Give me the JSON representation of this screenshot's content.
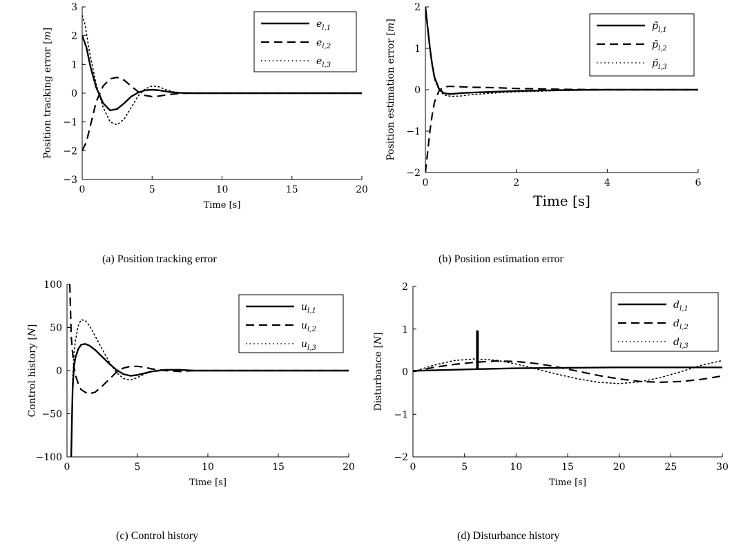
{
  "chart_data": [
    {
      "type": "line",
      "title": "",
      "caption": "(a)  Position tracking error",
      "xlabel": "Time [s]",
      "ylabel": "Position tracking error [m]",
      "xlim": [
        0,
        20
      ],
      "ylim": [
        -3,
        3
      ],
      "xticks": [
        0,
        5,
        10,
        15,
        20
      ],
      "yticks": [
        -3,
        -2,
        -1,
        0,
        1,
        2,
        3
      ],
      "grid": false,
      "legend_position": "top-right",
      "series": [
        {
          "name": "e_{l,1}",
          "style": "solid",
          "x": [
            0,
            0.3,
            0.6,
            1.0,
            1.5,
            2.0,
            2.5,
            3.0,
            3.5,
            4.0,
            4.5,
            5.0,
            5.5,
            6.0,
            6.5,
            7.0,
            8.0,
            9.0,
            10,
            20
          ],
          "y": [
            2.0,
            1.6,
            0.9,
            0.2,
            -0.35,
            -0.6,
            -0.55,
            -0.35,
            -0.12,
            0.02,
            0.1,
            0.12,
            0.1,
            0.06,
            0.03,
            0.01,
            0.0,
            0.0,
            0.0,
            0.0
          ]
        },
        {
          "name": "e_{l,2}",
          "style": "dashed",
          "x": [
            0,
            0.3,
            0.6,
            1.0,
            1.5,
            2.0,
            2.5,
            3.0,
            3.5,
            4.0,
            4.5,
            5.0,
            5.5,
            6.0,
            6.5,
            7.0,
            8.0,
            9.0,
            10,
            20
          ],
          "y": [
            -2.0,
            -1.7,
            -1.1,
            -0.3,
            0.25,
            0.5,
            0.55,
            0.45,
            0.25,
            0.05,
            -0.08,
            -0.12,
            -0.1,
            -0.06,
            -0.03,
            -0.01,
            0.0,
            0.0,
            0.0,
            0.0
          ]
        },
        {
          "name": "e_{l,3}",
          "style": "dotted",
          "x": [
            0,
            0.2,
            0.5,
            1.0,
            1.5,
            2.0,
            2.5,
            3.0,
            3.5,
            4.0,
            4.5,
            5.0,
            5.5,
            6.0,
            6.5,
            7.0,
            8.0,
            9.0,
            10,
            20
          ],
          "y": [
            2.7,
            2.4,
            1.5,
            0.3,
            -0.5,
            -1.0,
            -1.1,
            -0.9,
            -0.5,
            -0.1,
            0.15,
            0.25,
            0.22,
            0.12,
            0.05,
            0.02,
            0.0,
            0.0,
            0.0,
            0.0
          ]
        }
      ]
    },
    {
      "type": "line",
      "title": "",
      "caption": "(b)  Position estimation error",
      "xlabel": "Time [s]",
      "ylabel": "Position estimation error [m]",
      "xlim": [
        0,
        6
      ],
      "ylim": [
        -2,
        2
      ],
      "xticks": [
        0,
        2,
        4,
        6
      ],
      "yticks": [
        -2,
        -1,
        0,
        1,
        2
      ],
      "grid": false,
      "legend_position": "top-right",
      "series": [
        {
          "name": "p̃_{l,1}",
          "style": "solid",
          "x": [
            0,
            0.05,
            0.1,
            0.15,
            0.2,
            0.3,
            0.4,
            0.5,
            0.6,
            0.8,
            1.0,
            1.5,
            2.0,
            3.0,
            4.0,
            5.0,
            6.0
          ],
          "y": [
            2.0,
            1.5,
            1.0,
            0.6,
            0.3,
            0.02,
            -0.08,
            -0.1,
            -0.1,
            -0.08,
            -0.07,
            -0.05,
            -0.03,
            -0.01,
            0.0,
            0.0,
            0.0
          ]
        },
        {
          "name": "p̃_{l,2}",
          "style": "dashed",
          "x": [
            0,
            0.05,
            0.1,
            0.15,
            0.2,
            0.3,
            0.4,
            0.5,
            0.6,
            0.8,
            1.0,
            1.5,
            2.0,
            3.0,
            4.0,
            5.0,
            6.0
          ],
          "y": [
            -2.0,
            -1.5,
            -1.0,
            -0.6,
            -0.3,
            -0.02,
            0.06,
            0.08,
            0.08,
            0.07,
            0.06,
            0.05,
            0.03,
            0.01,
            0.0,
            0.0,
            0.0
          ]
        },
        {
          "name": "p̃_{l,3}",
          "style": "dotted",
          "x": [
            0,
            0.05,
            0.1,
            0.15,
            0.2,
            0.3,
            0.4,
            0.5,
            0.6,
            0.8,
            1.0,
            1.5,
            2.0,
            3.0,
            4.0,
            5.0,
            6.0
          ],
          "y": [
            2.0,
            1.5,
            1.0,
            0.6,
            0.25,
            0.0,
            -0.12,
            -0.15,
            -0.16,
            -0.15,
            -0.12,
            -0.08,
            -0.05,
            -0.02,
            0.0,
            0.0,
            0.0
          ]
        }
      ]
    },
    {
      "type": "line",
      "title": "",
      "caption": "(c)  Control history",
      "xlabel": "Time [s]",
      "ylabel": "Control history [N]",
      "xlim": [
        0,
        20
      ],
      "ylim": [
        -100,
        100
      ],
      "xticks": [
        0,
        5,
        10,
        15,
        20
      ],
      "yticks": [
        -100,
        -50,
        0,
        50,
        100
      ],
      "grid": false,
      "legend_position": "top-right",
      "series": [
        {
          "name": "u_{l,1}",
          "style": "solid",
          "x": [
            0.3,
            0.35,
            0.4,
            0.5,
            0.6,
            0.8,
            1.0,
            1.3,
            1.6,
            2.0,
            2.5,
            3.0,
            3.5,
            4.0,
            4.5,
            5.0,
            5.5,
            6.0,
            6.5,
            7.0,
            8.0,
            9.0,
            10,
            20
          ],
          "y": [
            -100,
            -60,
            -20,
            5,
            15,
            25,
            30,
            31,
            29,
            24,
            16,
            8,
            1,
            -4,
            -6,
            -5,
            -3,
            -1,
            0,
            1,
            1,
            0,
            0,
            0
          ]
        },
        {
          "name": "u_{l,2}",
          "style": "dashed",
          "x": [
            0.2,
            0.25,
            0.3,
            0.4,
            0.5,
            0.6,
            0.8,
            1.0,
            1.5,
            2.0,
            2.5,
            3.0,
            3.5,
            4.0,
            4.5,
            5.0,
            5.5,
            6.0,
            7.0,
            8.0,
            9.0,
            10,
            20
          ],
          "y": [
            100,
            70,
            40,
            20,
            5,
            -5,
            -15,
            -22,
            -27,
            -25,
            -18,
            -10,
            -2,
            3,
            5,
            5,
            4,
            2,
            0,
            -1,
            0,
            0,
            0
          ]
        },
        {
          "name": "u_{l,3}",
          "style": "dotted",
          "x": [
            0.3,
            0.35,
            0.4,
            0.5,
            0.6,
            0.8,
            1.0,
            1.3,
            1.6,
            2.0,
            2.5,
            3.0,
            3.5,
            4.0,
            4.5,
            5.0,
            5.5,
            6.0,
            7.0,
            8.0,
            9.0,
            10,
            20
          ],
          "y": [
            -100,
            -60,
            -10,
            20,
            35,
            52,
            59,
            58,
            52,
            40,
            25,
            10,
            -2,
            -9,
            -11,
            -8,
            -4,
            -1,
            1,
            1,
            0,
            0,
            0
          ]
        }
      ]
    },
    {
      "type": "line",
      "title": "",
      "caption": "(d)  Disturbance history",
      "xlabel": "Time [s]",
      "ylabel": "Disturbance [N]",
      "xlim": [
        0,
        30
      ],
      "ylim": [
        -2,
        2
      ],
      "xticks": [
        0,
        5,
        10,
        15,
        20,
        25,
        30
      ],
      "yticks": [
        -2,
        -1,
        0,
        1,
        2
      ],
      "grid": false,
      "legend_position": "top-right",
      "series": [
        {
          "name": "d_{l,1}",
          "style": "solid",
          "x": [
            0,
            6.2,
            6.2,
            6.3,
            6.3,
            10,
            15,
            20,
            25,
            30
          ],
          "y": [
            0.02,
            0.06,
            0.95,
            0.95,
            0.06,
            0.08,
            0.09,
            0.1,
            0.1,
            0.1
          ]
        },
        {
          "name": "d_{l,2}",
          "style": "dashed",
          "x": [
            0,
            2,
            4,
            6,
            8,
            10,
            12,
            14,
            16,
            18,
            20,
            22,
            24,
            26,
            28,
            30
          ],
          "y": [
            0.0,
            0.1,
            0.17,
            0.22,
            0.25,
            0.24,
            0.19,
            0.11,
            0.01,
            -0.09,
            -0.17,
            -0.23,
            -0.25,
            -0.23,
            -0.18,
            -0.1
          ]
        },
        {
          "name": "d_{l,3}",
          "style": "dotted",
          "x": [
            0,
            2,
            4,
            6,
            8,
            10,
            12,
            14,
            16,
            18,
            20,
            22,
            24,
            26,
            28,
            30
          ],
          "y": [
            0.0,
            0.15,
            0.26,
            0.3,
            0.27,
            0.18,
            0.06,
            -0.06,
            -0.17,
            -0.25,
            -0.28,
            -0.24,
            -0.14,
            0.0,
            0.15,
            0.26
          ]
        }
      ]
    }
  ]
}
